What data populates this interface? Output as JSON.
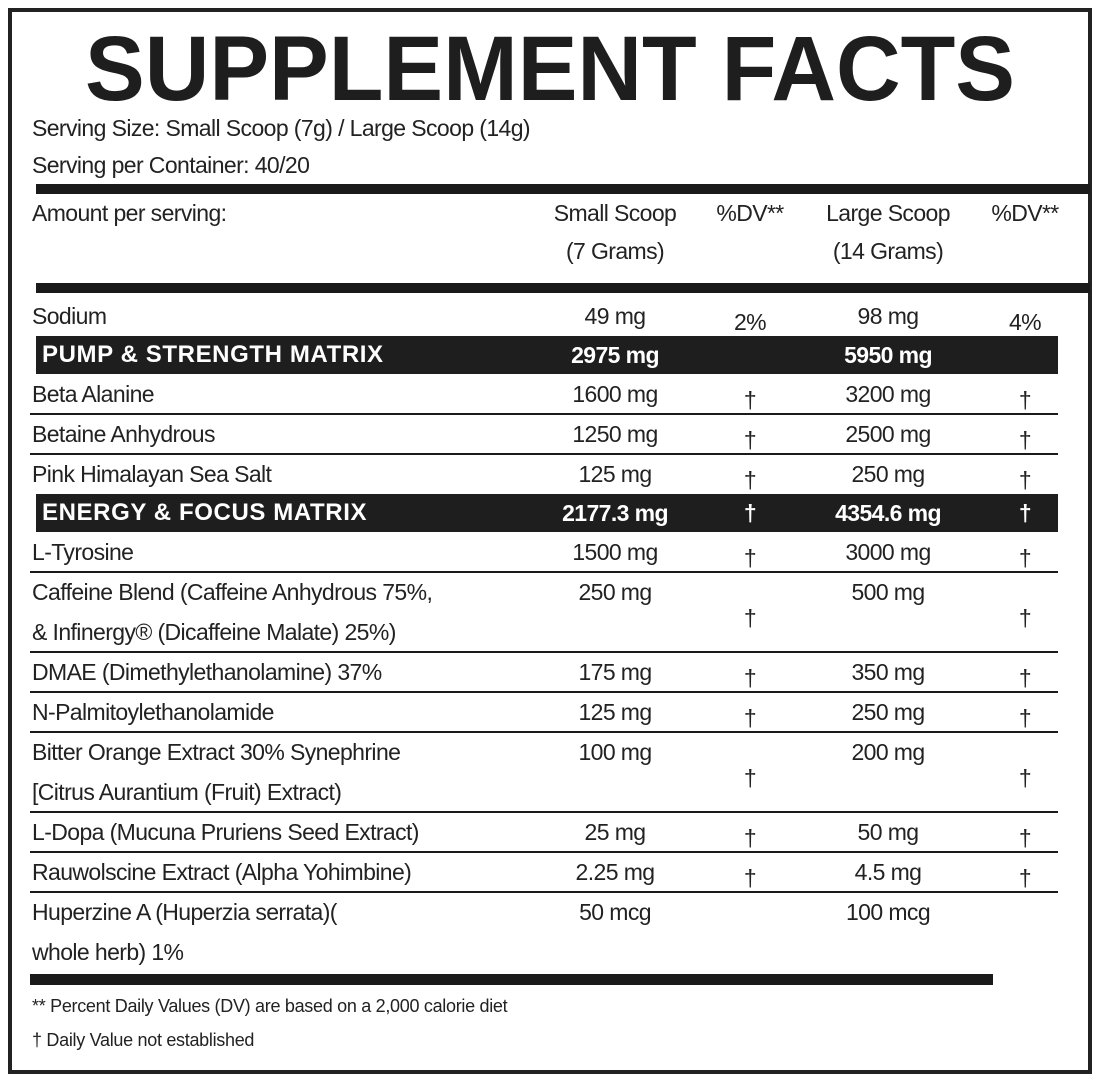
{
  "title": "SUPPLEMENT FACTS",
  "serving_size": "Serving Size: Small Scoop (7g) / Large Scoop (14g)",
  "servings_per_container": "Serving per Container: 40/20",
  "table": {
    "header": {
      "name": "Amount per serving:",
      "small": [
        "Small Scoop",
        "(7 Grams)"
      ],
      "small_dv": "%DV**",
      "large": [
        "Large Scoop",
        "(14 Grams)"
      ],
      "large_dv": "%DV**"
    },
    "rows": [
      {
        "name": [
          "Sodium"
        ],
        "small": "49 mg",
        "small_dv": "2%",
        "large": "98 mg",
        "large_dv": "4%"
      }
    ],
    "sections": [
      {
        "name": "PUMP & STRENGTH MATRIX",
        "small": "2975 mg",
        "large": "5950 mg",
        "items": [
          {
            "name": [
              "Beta Alanine"
            ],
            "small": "1600 mg",
            "small_dv": "†",
            "large": "3200 mg",
            "large_dv": "†"
          },
          {
            "name": [
              "Betaine Anhydrous"
            ],
            "small": "1250 mg",
            "small_dv": "†",
            "large": "2500 mg",
            "large_dv": "†"
          },
          {
            "name": [
              "Pink Himalayan Sea Salt"
            ],
            "small": "125 mg",
            "small_dv": "†",
            "large": "250 mg",
            "large_dv": "†"
          }
        ]
      },
      {
        "name": "ENERGY & FOCUS MATRIX",
        "small": "2177.3 mg",
        "small_dv": "†",
        "large": "4354.6 mg",
        "large_dv": "†",
        "items": [
          {
            "name": [
              "L-Tyrosine"
            ],
            "small": "1500 mg",
            "small_dv": "†",
            "large": "3000 mg",
            "large_dv": "†"
          },
          {
            "name": [
              "Caffeine Blend (Caffeine Anhydrous 75%,",
              "& Infinergy® (Dicaffeine Malate) 25%)"
            ],
            "small": "250 mg",
            "small_dv": "†",
            "large": "500 mg",
            "large_dv": "†"
          },
          {
            "name": [
              "DMAE (Dimethylethanolamine) 37%"
            ],
            "small": "175 mg",
            "small_dv": "†",
            "large": "350 mg",
            "large_dv": "†"
          },
          {
            "name": [
              "N-Palmitoylethanolamide"
            ],
            "small": "125 mg",
            "small_dv": "†",
            "large": "250 mg",
            "large_dv": "†"
          },
          {
            "name": [
              "Bitter Orange Extract 30% Synephrine",
              "[Citrus Aurantium (Fruit) Extract)"
            ],
            "small": "100 mg",
            "small_dv": "†",
            "large": "200 mg",
            "large_dv": "†"
          },
          {
            "name": [
              "L-Dopa (Mucuna Pruriens Seed Extract)"
            ],
            "small": "25 mg",
            "small_dv": "†",
            "large": "50 mg",
            "large_dv": "†"
          },
          {
            "name": [
              "Rauwolscine Extract (Alpha Yohimbine)"
            ],
            "small": "2.25 mg",
            "small_dv": "†",
            "large": "4.5 mg",
            "large_dv": "†"
          },
          {
            "name": [
              "Huperzine A (Huperzia serrata)(",
              "whole herb) 1%"
            ],
            "small": "50 mcg",
            "large": "100 mcg"
          }
        ]
      }
    ]
  },
  "footnotes": [
    "** Percent Daily Values (DV) are based on a 2,000 calorie diet",
    "† Daily Value not established"
  ]
}
